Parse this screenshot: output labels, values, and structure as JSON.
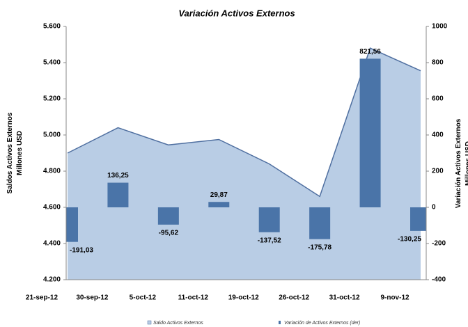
{
  "chart_data": {
    "type": "area-bar",
    "title": "Variación Activos Externos",
    "y_label": [
      "Saldos Activos Externos",
      "Millones USD"
    ],
    "y2_label": [
      "Variación Activos Externos",
      "Millones USD"
    ],
    "categories": [
      "21-sep-12",
      "30-sep-12",
      "5-oct-12",
      "11-oct-12",
      "19-oct-12",
      "26-oct-12",
      "31-oct-12",
      "9-nov-12"
    ],
    "series": [
      {
        "name": "Saldo Activos Externos",
        "color": "#b9cde5",
        "type": "area",
        "axis": "y",
        "values": [
          4900,
          5040,
          4945,
          4975,
          4840,
          4660,
          5480,
          5355
        ]
      },
      {
        "name": "Variación de Activos Externos (der)",
        "color": "#4a74a8",
        "type": "bar",
        "axis": "y2",
        "values": [
          -191.03,
          136.25,
          -95.62,
          29.87,
          -137.52,
          -175.78,
          821.56,
          -130.25
        ],
        "value_labels": [
          "-191,03",
          "136,25",
          "-95,62",
          "29,87",
          "-137,52",
          "-175,78",
          "821,56",
          "-130,25"
        ]
      }
    ],
    "ylim": [
      4200,
      5600
    ],
    "yticks": [
      {
        "value": 4200,
        "label": "4.200"
      },
      {
        "value": 4400,
        "label": "4.400"
      },
      {
        "value": 4600,
        "label": "4.600"
      },
      {
        "value": 4800,
        "label": "4.800"
      },
      {
        "value": 5000,
        "label": "5.000"
      },
      {
        "value": 5200,
        "label": "5.200"
      },
      {
        "value": 5400,
        "label": "5.400"
      },
      {
        "value": 5600,
        "label": "5.600"
      }
    ],
    "y2lim": [
      -400,
      1000
    ],
    "y2ticks": [
      -400,
      -200,
      0,
      200,
      400,
      600,
      800,
      1000
    ]
  }
}
